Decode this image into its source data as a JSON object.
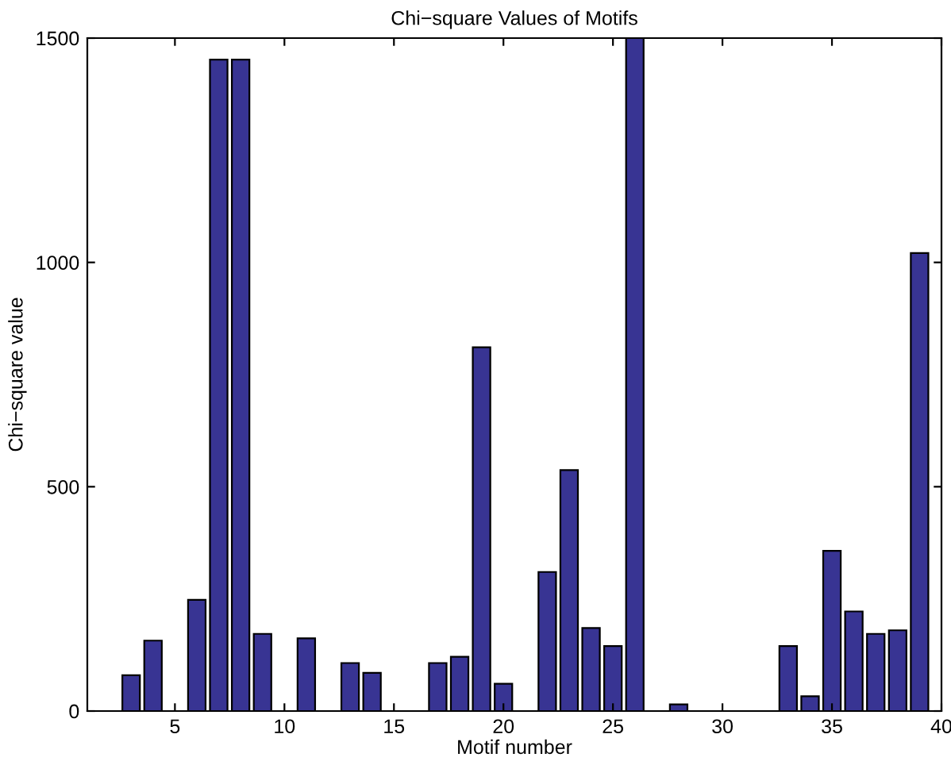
{
  "chart_data": {
    "type": "bar",
    "title": "Chi−square Values of Motifs",
    "xlabel": "Motif number",
    "ylabel": "Chi−square value",
    "x": [
      3,
      4,
      5,
      6,
      7,
      8,
      9,
      10,
      11,
      12,
      13,
      14,
      15,
      16,
      17,
      18,
      19,
      20,
      21,
      22,
      23,
      24,
      25,
      26,
      27,
      28,
      29,
      30,
      31,
      32,
      33,
      34,
      35,
      36,
      37,
      38,
      39
    ],
    "values": [
      80,
      157,
      0,
      248,
      1452,
      1452,
      172,
      0,
      162,
      0,
      107,
      85,
      0,
      0,
      107,
      121,
      811,
      61,
      0,
      310,
      537,
      185,
      145,
      1500,
      0,
      15,
      0,
      0,
      0,
      0,
      145,
      33,
      357,
      222,
      172,
      180,
      1021
    ],
    "color": "#383493",
    "xlim": [
      1,
      40
    ],
    "ylim": [
      0,
      1500
    ],
    "xticks": [
      5,
      10,
      15,
      20,
      25,
      30,
      35,
      40
    ],
    "yticks": [
      0,
      500,
      1000,
      1500
    ],
    "grid": false,
    "legend": false
  }
}
